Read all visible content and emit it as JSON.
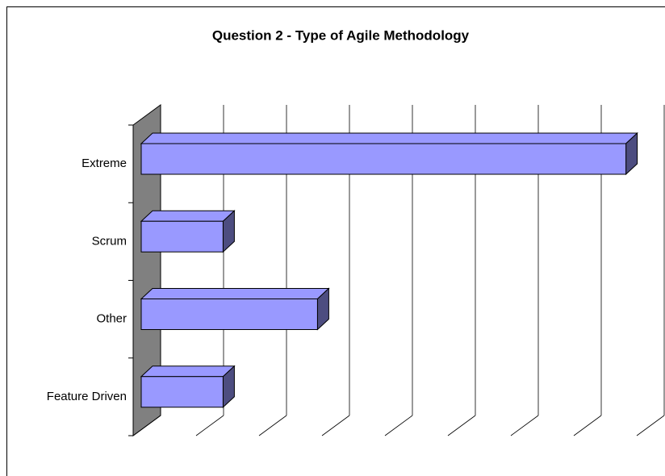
{
  "chart_data": {
    "type": "bar",
    "orientation": "horizontal",
    "title": "Question 2 - Type of Agile Methodology",
    "categories": [
      "Extreme",
      "Scrum",
      "Other",
      "Feature Driven"
    ],
    "values": [
      7.7,
      1.3,
      2.8,
      1.3
    ],
    "color": "#9999ff",
    "xlim": [
      0,
      8
    ],
    "xticks": [
      0,
      1,
      2,
      3,
      4,
      5,
      6,
      7,
      8
    ],
    "grid": true
  }
}
